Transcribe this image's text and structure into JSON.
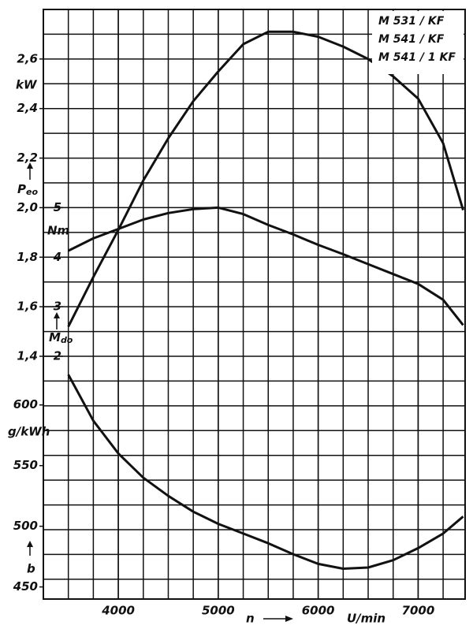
{
  "chart_data": {
    "type": "line",
    "models": [
      "M 531 / KF",
      "M 541 / KF",
      "M 541 / 1 KF"
    ],
    "xlabel": "n",
    "xunit": "U/min",
    "xlim": [
      3250,
      7470
    ],
    "xticks": [
      4000,
      5000,
      6000,
      7000
    ],
    "x": [
      3500,
      3750,
      4000,
      4250,
      4500,
      4750,
      5000,
      5250,
      5500,
      5750,
      6000,
      6250,
      6500,
      6750,
      7000,
      7250,
      7450
    ],
    "axes": {
      "y": {
        "unit": "kW",
        "symbol": "P",
        "subscript": "eo",
        "ylim": [
          0.42,
          2.8
        ],
        "yticks": [
          {
            "value": 1.4,
            "label": "1,4"
          },
          {
            "value": 1.6,
            "label": "1,6"
          },
          {
            "value": 1.8,
            "label": "1,8"
          },
          {
            "value": 2.0,
            "label": "2,0"
          },
          {
            "value": 2.2,
            "label": "2,2"
          },
          {
            "value": 2.4,
            "label": "2,4"
          },
          {
            "value": 2.6,
            "label": "2,6"
          }
        ]
      },
      "y2": {
        "unit": "Nm",
        "symbol": "M",
        "subscript": "do",
        "ylim": [
          -2.9,
          9.0
        ],
        "yticks": [
          2,
          3,
          4,
          5
        ]
      },
      "y3": {
        "unit": "g/kWh",
        "symbol": "b",
        "ylim": [
          440,
          926
        ],
        "yticks": [
          450,
          500,
          550,
          600
        ]
      }
    },
    "series": [
      {
        "axis": "y",
        "color": "#111111",
        "values": [
          1.52,
          1.72,
          1.91,
          2.11,
          2.28,
          2.43,
          2.55,
          2.66,
          2.71,
          2.71,
          2.69,
          2.65,
          2.6,
          2.53,
          2.44,
          2.26,
          1.99
        ]
      },
      {
        "axis": "y2",
        "color": "#111111",
        "values": [
          4.13,
          4.38,
          4.57,
          4.76,
          4.89,
          4.97,
          5.0,
          4.87,
          4.65,
          4.46,
          4.25,
          4.06,
          3.86,
          3.66,
          3.46,
          3.14,
          2.63
        ]
      },
      {
        "axis": "y3",
        "color": "#111111",
        "values": [
          625,
          587,
          560,
          540,
          525,
          512,
          502,
          494,
          486,
          477,
          469,
          465,
          466,
          472,
          482,
          494,
          508
        ]
      }
    ]
  }
}
